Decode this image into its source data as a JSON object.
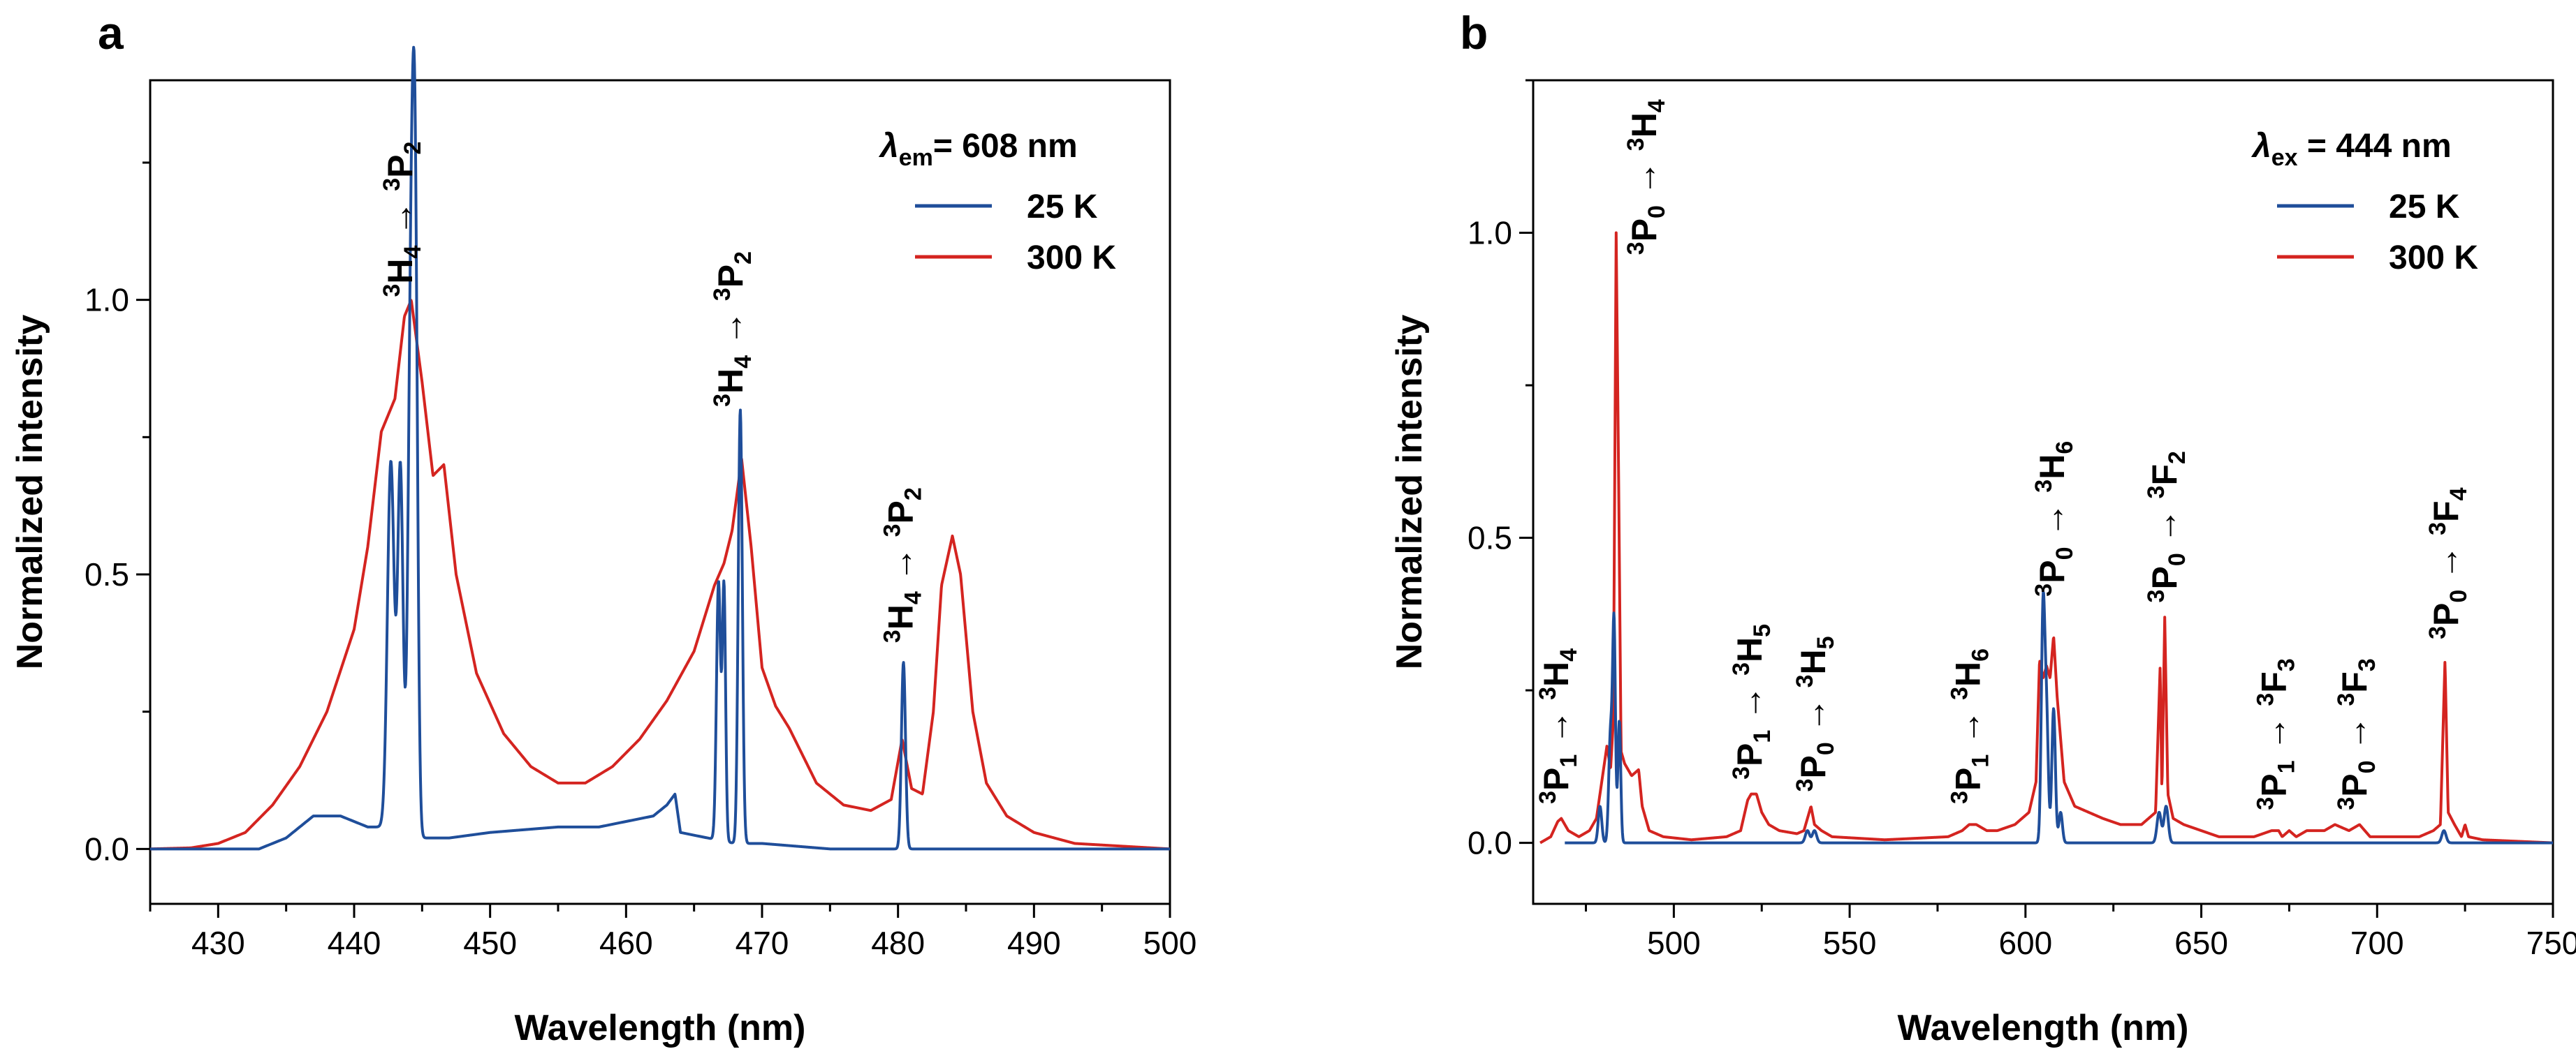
{
  "colors": {
    "blue": "#1f4e9a",
    "red": "#d42420"
  },
  "chart_data": [
    {
      "panel": "a",
      "type": "line",
      "xlabel": "Wavelength (nm)",
      "ylabel": "Normalized intensity",
      "xlim": [
        425,
        500
      ],
      "ylim": [
        -0.1,
        1.4
      ],
      "xticks": [
        430,
        440,
        450,
        460,
        470,
        480,
        490,
        500
      ],
      "yticks": [
        0.0,
        0.5,
        1.0
      ],
      "legend": {
        "title_symbol": "λ",
        "title_sub": "em",
        "title_rest": "= 608 nm",
        "position": "top-right"
      },
      "series": [
        {
          "name": "25 K",
          "color": "blue",
          "baseline": [
            [
              425,
              0.0
            ],
            [
              433,
              0.0
            ],
            [
              435,
              0.02
            ],
            [
              437,
              0.06
            ],
            [
              439,
              0.06
            ],
            [
              441,
              0.04
            ],
            [
              442,
              0.04
            ],
            [
              445,
              0.02
            ],
            [
              447,
              0.02
            ],
            [
              450,
              0.03
            ],
            [
              455,
              0.04
            ],
            [
              458,
              0.04
            ],
            [
              460,
              0.05
            ],
            [
              462,
              0.06
            ],
            [
              463,
              0.08
            ],
            [
              463.6,
              0.1
            ],
            [
              464,
              0.03
            ],
            [
              466,
              0.02
            ],
            [
              468,
              0.01
            ],
            [
              470,
              0.01
            ],
            [
              475,
              0.0
            ],
            [
              480,
              0.0
            ],
            [
              485,
              0.0
            ],
            [
              500,
              0.0
            ]
          ],
          "peaks": [
            [
              442.7,
              0.67,
              0.25
            ],
            [
              443.4,
              0.66,
              0.2
            ],
            [
              444.2,
              1.0,
              0.22
            ],
            [
              444.5,
              0.9,
              0.18
            ],
            [
              466.8,
              0.47,
              0.15
            ],
            [
              467.2,
              0.46,
              0.12
            ],
            [
              468.4,
              0.79,
              0.15
            ],
            [
              480.4,
              0.34,
              0.15
            ]
          ]
        },
        {
          "name": "300 K",
          "color": "red",
          "baseline": [
            [
              425,
              0.0
            ],
            [
              428,
              0.002
            ],
            [
              430,
              0.01
            ],
            [
              432,
              0.03
            ],
            [
              434,
              0.08
            ],
            [
              436,
              0.15
            ],
            [
              438,
              0.25
            ],
            [
              440,
              0.4
            ],
            [
              441,
              0.55
            ],
            [
              442,
              0.76
            ],
            [
              443,
              0.82
            ],
            [
              443.7,
              0.97
            ],
            [
              444.2,
              1.0
            ],
            [
              445,
              0.85
            ],
            [
              445.8,
              0.68
            ],
            [
              446.6,
              0.7
            ],
            [
              447.5,
              0.5
            ],
            [
              449,
              0.32
            ],
            [
              451,
              0.21
            ],
            [
              453,
              0.15
            ],
            [
              455,
              0.12
            ],
            [
              457,
              0.12
            ],
            [
              459,
              0.15
            ],
            [
              461,
              0.2
            ],
            [
              463,
              0.27
            ],
            [
              465,
              0.36
            ],
            [
              466.5,
              0.48
            ],
            [
              467.2,
              0.52
            ],
            [
              467.8,
              0.58
            ],
            [
              468.5,
              0.71
            ],
            [
              469.2,
              0.55
            ],
            [
              470,
              0.33
            ],
            [
              471,
              0.26
            ],
            [
              472,
              0.22
            ],
            [
              474,
              0.12
            ],
            [
              476,
              0.08
            ],
            [
              478,
              0.07
            ],
            [
              479.5,
              0.09
            ],
            [
              480.3,
              0.2
            ],
            [
              481,
              0.11
            ],
            [
              481.8,
              0.1
            ],
            [
              482.6,
              0.25
            ],
            [
              483.2,
              0.48
            ],
            [
              484,
              0.57
            ],
            [
              484.6,
              0.5
            ],
            [
              485.5,
              0.25
            ],
            [
              486.5,
              0.12
            ],
            [
              488,
              0.06
            ],
            [
              490,
              0.03
            ],
            [
              493,
              0.01
            ],
            [
              500,
              0.0
            ]
          ],
          "peaks": []
        }
      ],
      "annotations": [
        {
          "base": "H",
          "bsup": "3",
          "bsub": "4",
          "arrow": "→",
          "target": "P",
          "tsup": "3",
          "tsub": "2",
          "x": 443.5,
          "y": 0.99
        },
        {
          "base": "H",
          "bsup": "3",
          "bsub": "4",
          "arrow": "→",
          "target": "P",
          "tsup": "3",
          "tsub": "2",
          "x": 467.8,
          "y": 0.79
        },
        {
          "base": "H",
          "bsup": "3",
          "bsub": "4",
          "arrow": "→",
          "target": "P",
          "tsup": "3",
          "tsub": "2",
          "x": 480.3,
          "y": 0.36
        }
      ]
    },
    {
      "panel": "b",
      "type": "line",
      "xlabel": "Wavelength (nm)",
      "ylabel": "Normalized intensity",
      "xlim": [
        460,
        750
      ],
      "ylim": [
        -0.1,
        1.25
      ],
      "xticks": [
        500,
        550,
        600,
        650,
        700,
        750
      ],
      "yticks": [
        0.0,
        0.5,
        1.0
      ],
      "legend": {
        "title_symbol": "λ",
        "title_sub": "ex",
        "title_rest": " = 444 nm",
        "position": "top-right"
      },
      "series": [
        {
          "name": "25 K",
          "color": "blue",
          "baseline": [
            [
              469,
              0.0
            ],
            [
              750,
              0.0
            ]
          ],
          "peaks": [
            [
              479,
              0.06,
              0.5
            ],
            [
              482,
              0.18,
              0.5
            ],
            [
              483,
              0.35,
              0.4
            ],
            [
              484.5,
              0.2,
              0.4
            ],
            [
              538,
              0.02,
              0.6
            ],
            [
              540,
              0.02,
              0.6
            ],
            [
              605,
              0.38,
              0.5
            ],
            [
              606,
              0.2,
              0.5
            ],
            [
              608,
              0.22,
              0.5
            ],
            [
              610,
              0.05,
              0.5
            ],
            [
              638,
              0.05,
              0.6
            ],
            [
              640,
              0.06,
              0.6
            ],
            [
              719,
              0.02,
              0.6
            ]
          ]
        },
        {
          "name": "300 K",
          "color": "red",
          "baseline": [
            [
              462,
              0.0
            ],
            [
              465,
              0.01
            ],
            [
              467,
              0.035
            ],
            [
              468,
              0.04
            ],
            [
              470,
              0.02
            ],
            [
              473,
              0.01
            ],
            [
              476,
              0.02
            ],
            [
              478,
              0.04
            ],
            [
              480,
              0.12
            ],
            [
              481,
              0.16
            ],
            [
              482,
              0.12
            ],
            [
              482.8,
              0.2
            ],
            [
              483.6,
              1.0
            ],
            [
              484.3,
              0.6
            ],
            [
              485,
              0.15
            ],
            [
              486,
              0.13
            ],
            [
              488,
              0.11
            ],
            [
              490,
              0.12
            ],
            [
              491,
              0.06
            ],
            [
              493,
              0.02
            ],
            [
              497,
              0.01
            ],
            [
              505,
              0.005
            ],
            [
              515,
              0.01
            ],
            [
              519,
              0.02
            ],
            [
              521,
              0.07
            ],
            [
              522,
              0.08
            ],
            [
              523.5,
              0.08
            ],
            [
              525,
              0.05
            ],
            [
              527,
              0.03
            ],
            [
              530,
              0.02
            ],
            [
              535,
              0.015
            ],
            [
              537,
              0.02
            ],
            [
              539,
              0.06
            ],
            [
              540,
              0.03
            ],
            [
              542,
              0.02
            ],
            [
              545,
              0.01
            ],
            [
              560,
              0.005
            ],
            [
              578,
              0.01
            ],
            [
              582,
              0.02
            ],
            [
              584,
              0.03
            ],
            [
              586,
              0.03
            ],
            [
              589,
              0.02
            ],
            [
              592,
              0.02
            ],
            [
              597,
              0.03
            ],
            [
              601,
              0.05
            ],
            [
              603,
              0.1
            ],
            [
              604,
              0.3
            ],
            [
              605,
              0.27
            ],
            [
              606,
              0.29
            ],
            [
              607,
              0.27
            ],
            [
              608,
              0.34
            ],
            [
              609,
              0.24
            ],
            [
              611,
              0.1
            ],
            [
              614,
              0.06
            ],
            [
              618,
              0.05
            ],
            [
              622,
              0.04
            ],
            [
              627,
              0.03
            ],
            [
              633,
              0.03
            ],
            [
              637,
              0.05
            ],
            [
              638.3,
              0.29
            ],
            [
              638.8,
              0.08
            ],
            [
              639.6,
              0.37
            ],
            [
              640.5,
              0.08
            ],
            [
              642,
              0.04
            ],
            [
              645,
              0.03
            ],
            [
              650,
              0.02
            ],
            [
              655,
              0.01
            ],
            [
              665,
              0.01
            ],
            [
              670,
              0.02
            ],
            [
              672,
              0.02
            ],
            [
              673,
              0.01
            ],
            [
              675,
              0.02
            ],
            [
              677,
              0.01
            ],
            [
              680,
              0.02
            ],
            [
              685,
              0.02
            ],
            [
              688,
              0.03
            ],
            [
              692,
              0.02
            ],
            [
              695,
              0.03
            ],
            [
              698,
              0.01
            ],
            [
              705,
              0.01
            ],
            [
              712,
              0.01
            ],
            [
              716,
              0.02
            ],
            [
              718,
              0.03
            ],
            [
              719.3,
              0.3
            ],
            [
              720.2,
              0.05
            ],
            [
              722,
              0.03
            ],
            [
              724,
              0.01
            ],
            [
              725,
              0.03
            ],
            [
              726,
              0.01
            ],
            [
              730,
              0.005
            ],
            [
              750,
              0.0
            ]
          ],
          "peaks": []
        }
      ],
      "annotations": [
        {
          "base": "P",
          "bsup": "3",
          "bsub": "1",
          "arrow": "→",
          "target": "H",
          "tsup": "3",
          "tsub": "4",
          "x": 467,
          "y": 0.05
        },
        {
          "base": "P",
          "bsup": "3",
          "bsub": "0",
          "arrow": "→",
          "target": "H",
          "tsup": "3",
          "tsub": "4",
          "x": 492,
          "y": 0.95
        },
        {
          "base": "P",
          "bsup": "3",
          "bsub": "1",
          "arrow": "→",
          "target": "H",
          "tsup": "3",
          "tsub": "5",
          "x": 522,
          "y": 0.09
        },
        {
          "base": "P",
          "bsup": "3",
          "bsub": "0",
          "arrow": "→",
          "target": "H",
          "tsup": "3",
          "tsub": "5",
          "x": 540,
          "y": 0.07
        },
        {
          "base": "P",
          "bsup": "3",
          "bsub": "1",
          "arrow": "→",
          "target": "H",
          "tsup": "3",
          "tsub": "6",
          "x": 584,
          "y": 0.05
        },
        {
          "base": "P",
          "bsup": "3",
          "bsub": "0",
          "arrow": "→",
          "target": "H",
          "tsup": "3",
          "tsub": "6",
          "x": 608,
          "y": 0.39
        },
        {
          "base": "P",
          "bsup": "3",
          "bsub": "0",
          "arrow": "→",
          "target": "F",
          "tsup": "3",
          "tsub": "2",
          "x": 640,
          "y": 0.38
        },
        {
          "base": "P",
          "bsup": "3",
          "bsub": "1",
          "arrow": "→",
          "target": "F",
          "tsup": "3",
          "tsub": "3",
          "x": 671,
          "y": 0.04
        },
        {
          "base": "P",
          "bsup": "3",
          "bsub": "0",
          "arrow": "→",
          "target": "F",
          "tsup": "3",
          "tsub": "3",
          "x": 694,
          "y": 0.04
        },
        {
          "base": "P",
          "bsup": "3",
          "bsub": "0",
          "arrow": "→",
          "target": "F",
          "tsup": "3",
          "tsub": "4",
          "x": 720,
          "y": 0.32
        }
      ]
    }
  ]
}
